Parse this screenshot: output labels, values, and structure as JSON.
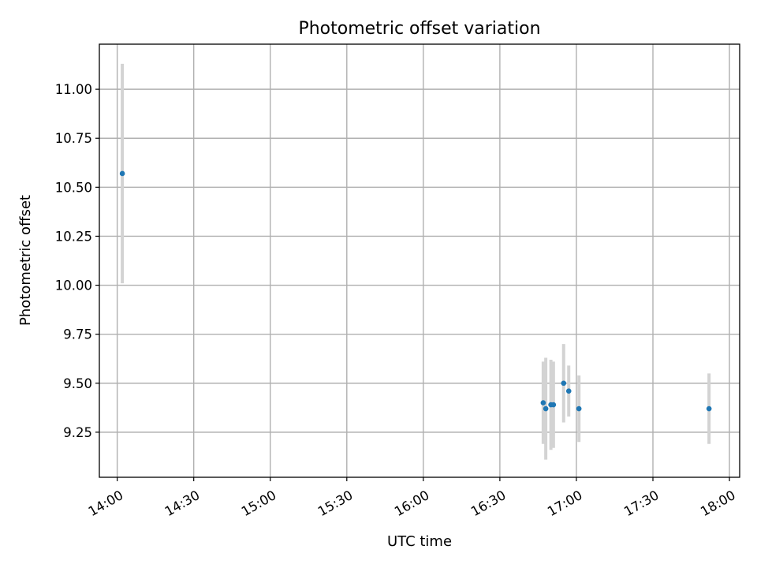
{
  "chart_data": {
    "type": "scatter",
    "title": "Photometric offset variation",
    "xlabel": "UTC time",
    "ylabel": "Photometric offset",
    "x_ticks": [
      "14:00",
      "14:30",
      "15:00",
      "15:30",
      "16:00",
      "16:30",
      "17:00",
      "17:30",
      "18:00"
    ],
    "y_ticks": [
      "9.25",
      "9.50",
      "9.75",
      "10.00",
      "10.25",
      "10.50",
      "10.75",
      "11.00"
    ],
    "xlim": [
      "13:53",
      "18:04"
    ],
    "ylim": [
      9.02,
      11.23
    ],
    "grid": true,
    "colors": {
      "point": "#1f77b4",
      "errorbar": "#d3d3d3"
    },
    "points": [
      {
        "x": "14:02",
        "y": 10.57,
        "yerr": 0.56
      },
      {
        "x": "16:47",
        "y": 9.4,
        "yerr": 0.21
      },
      {
        "x": "16:48",
        "y": 9.37,
        "yerr": 0.26
      },
      {
        "x": "16:50",
        "y": 9.39,
        "yerr": 0.23
      },
      {
        "x": "16:51",
        "y": 9.39,
        "yerr": 0.22
      },
      {
        "x": "16:55",
        "y": 9.5,
        "yerr": 0.2
      },
      {
        "x": "16:57",
        "y": 9.46,
        "yerr": 0.13
      },
      {
        "x": "17:01",
        "y": 9.37,
        "yerr": 0.17
      },
      {
        "x": "17:52",
        "y": 9.37,
        "yerr": 0.18
      }
    ]
  }
}
